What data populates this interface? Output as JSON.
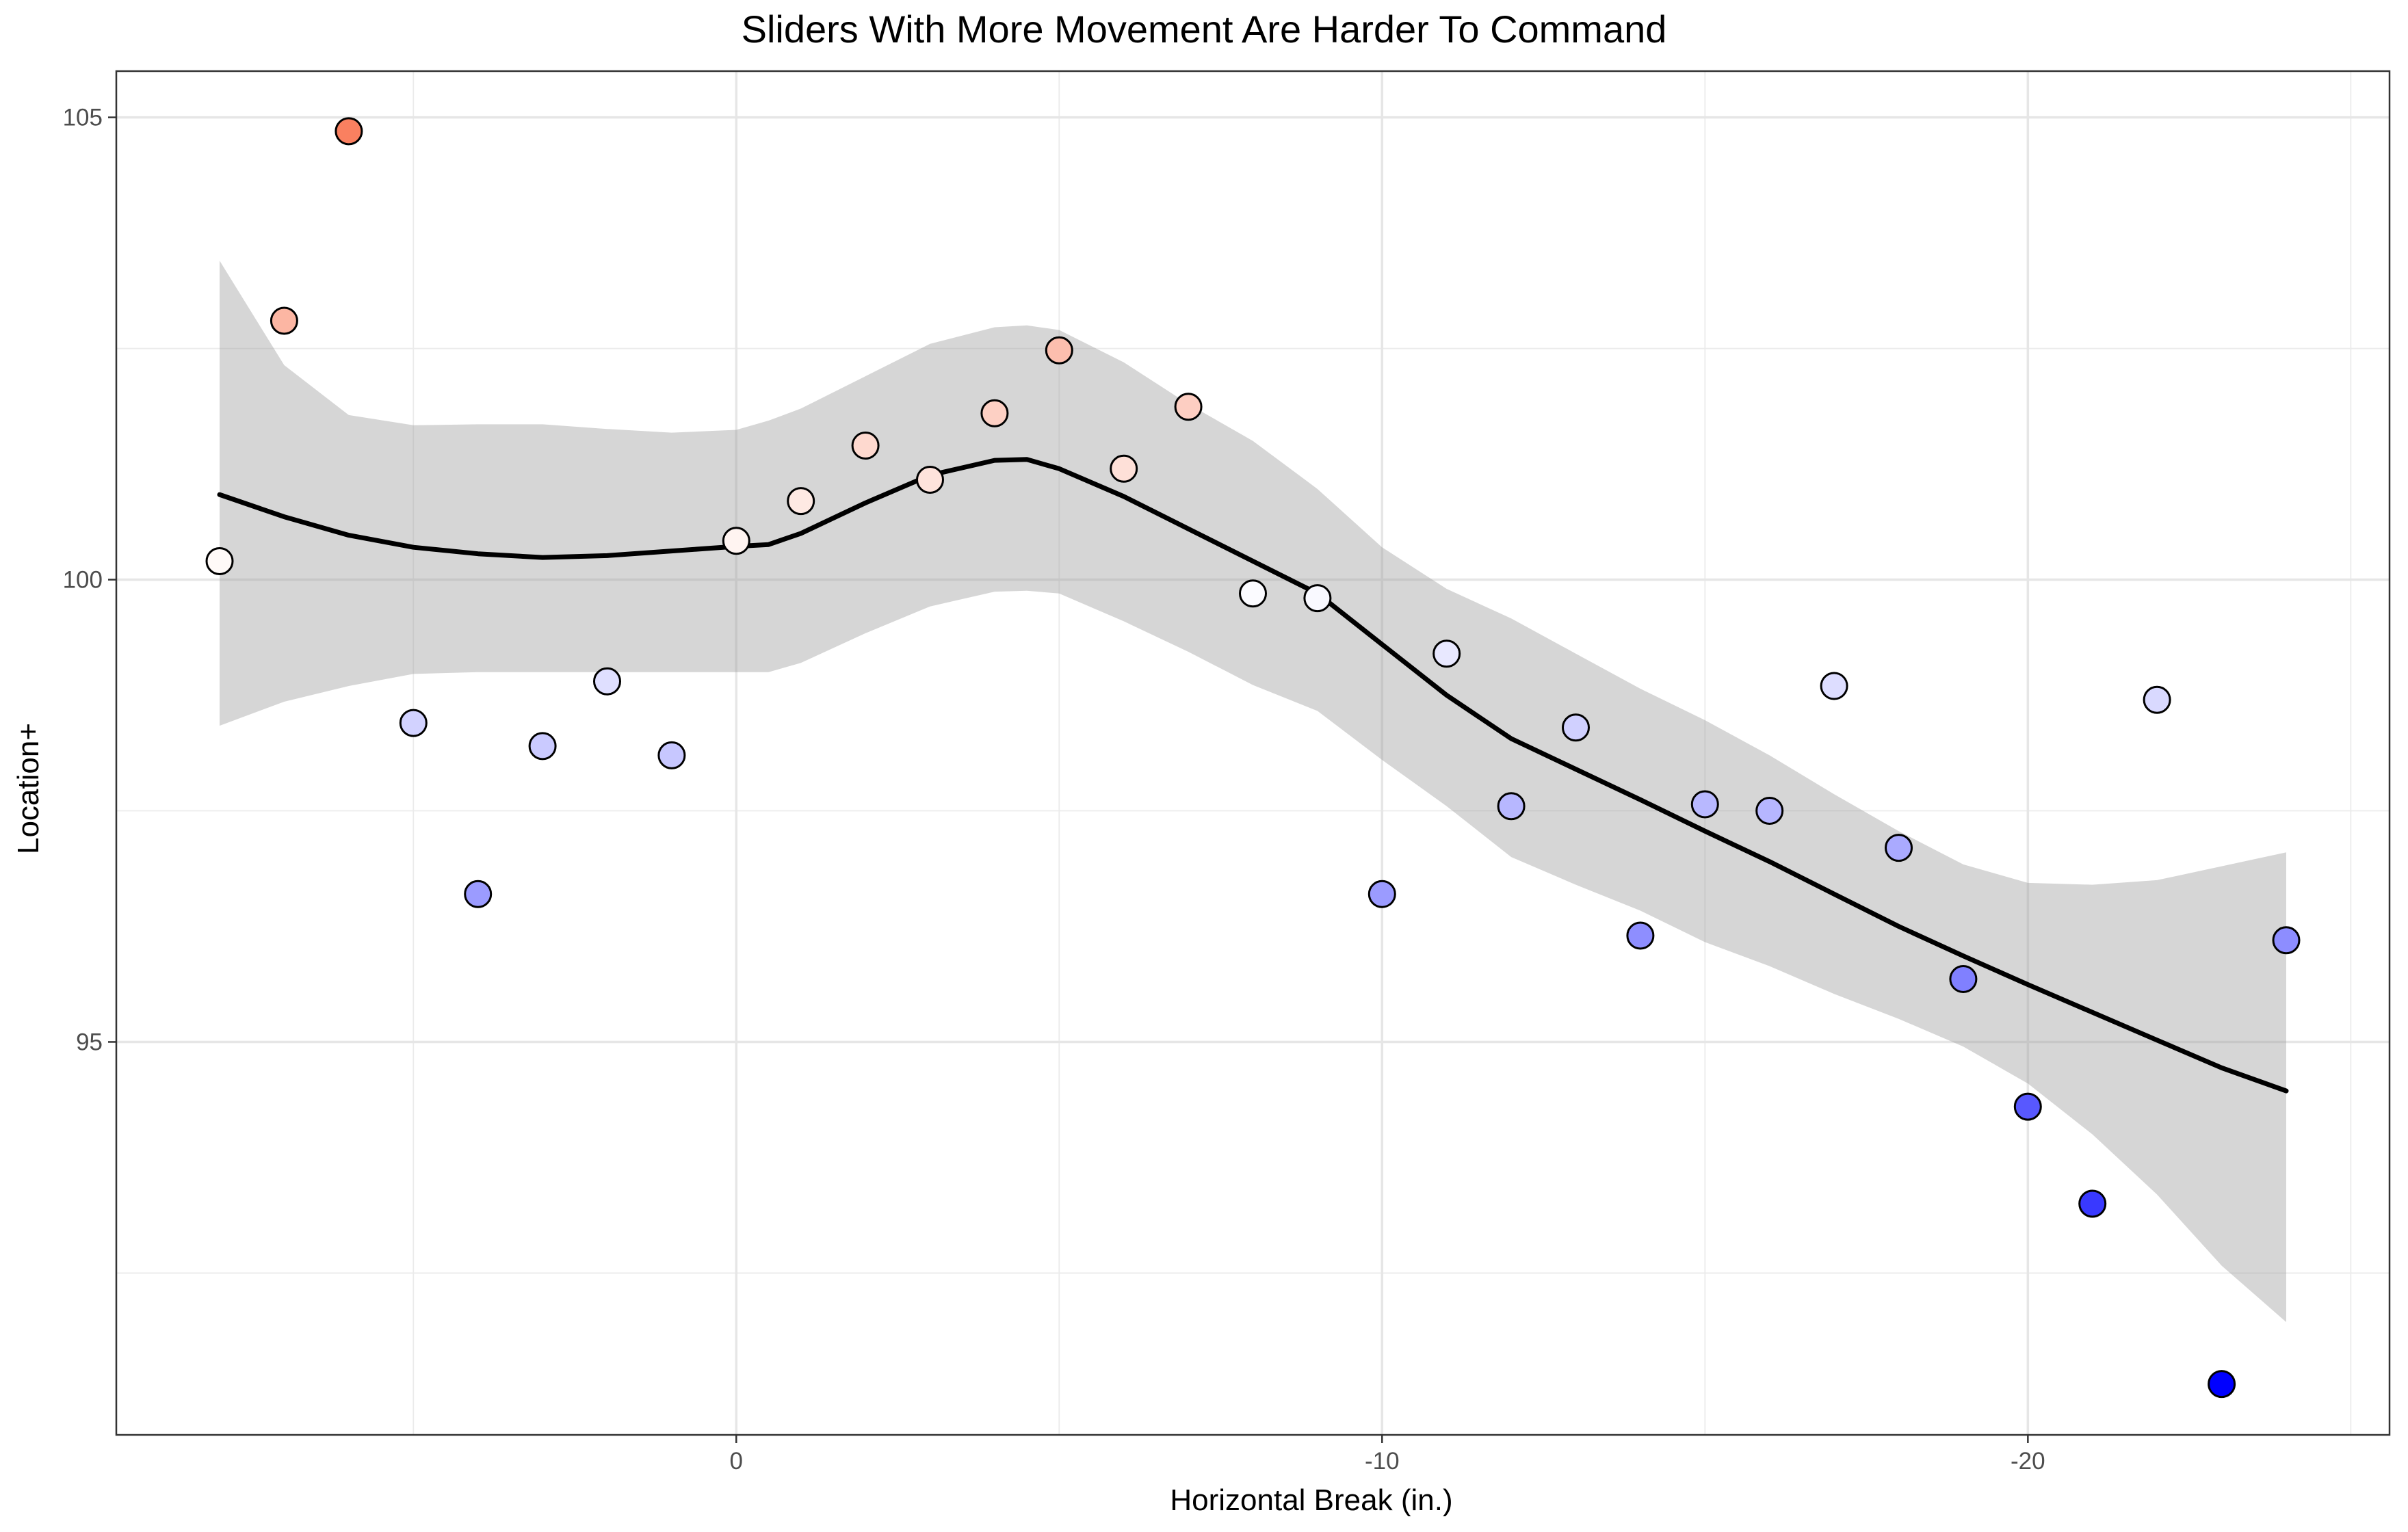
{
  "chart_data": {
    "type": "scatter",
    "title": "Sliders With More Movement Are Harder To Command",
    "xlabel": "Horizontal Break (in.)",
    "ylabel": "Location+",
    "x_reversed": true,
    "xlim": [
      9.6,
      -25.6
    ],
    "ylim": [
      90.75,
      105.5
    ],
    "x_ticks": [
      0,
      -10,
      -20
    ],
    "x_tick_labels": [
      "0",
      "-10",
      "-20"
    ],
    "x_minor_ticks": [
      5,
      -5,
      -15,
      -25
    ],
    "y_ticks": [
      95,
      100,
      105
    ],
    "y_tick_labels": [
      "95",
      "100",
      "105"
    ],
    "y_minor_ticks": [
      92.5,
      97.5,
      102.5
    ],
    "grid": true,
    "color_scale": {
      "low": "#0000ff",
      "mid": "#ffffff",
      "high": "#fa8060",
      "midpoint": 100
    },
    "points": [
      {
        "x": 8,
        "y": 100.2
      },
      {
        "x": 7,
        "y": 102.8
      },
      {
        "x": 6,
        "y": 104.85
      },
      {
        "x": 5,
        "y": 98.45
      },
      {
        "x": 4,
        "y": 96.6
      },
      {
        "x": 3,
        "y": 98.2
      },
      {
        "x": 2,
        "y": 98.9
      },
      {
        "x": 1,
        "y": 98.1
      },
      {
        "x": 0,
        "y": 100.42
      },
      {
        "x": -1,
        "y": 100.85
      },
      {
        "x": -2,
        "y": 101.45
      },
      {
        "x": -3,
        "y": 101.08
      },
      {
        "x": -4,
        "y": 101.8
      },
      {
        "x": -5,
        "y": 102.48
      },
      {
        "x": -6,
        "y": 101.2
      },
      {
        "x": -7,
        "y": 101.87
      },
      {
        "x": -8,
        "y": 99.85
      },
      {
        "x": -9,
        "y": 99.8
      },
      {
        "x": -10,
        "y": 96.6
      },
      {
        "x": -11,
        "y": 99.2
      },
      {
        "x": -12,
        "y": 97.55
      },
      {
        "x": -13,
        "y": 98.4
      },
      {
        "x": -14,
        "y": 96.15
      },
      {
        "x": -15,
        "y": 97.57
      },
      {
        "x": -16,
        "y": 97.5
      },
      {
        "x": -17,
        "y": 98.85
      },
      {
        "x": -18,
        "y": 97.1
      },
      {
        "x": -19,
        "y": 95.68
      },
      {
        "x": -20,
        "y": 94.3
      },
      {
        "x": -21,
        "y": 93.25
      },
      {
        "x": -22,
        "y": 98.7
      },
      {
        "x": -23,
        "y": 91.3
      },
      {
        "x": -24,
        "y": 96.1
      }
    ],
    "smooth": {
      "x": [
        8,
        7,
        6,
        5,
        4,
        3,
        2,
        1,
        0,
        -0.5,
        -1,
        -2,
        -3,
        -4,
        -4.5,
        -5,
        -6,
        -7,
        -8,
        -9,
        -10,
        -11,
        -12,
        -13,
        -14,
        -15,
        -16,
        -17,
        -18,
        -19,
        -20,
        -21,
        -22,
        -23,
        -24
      ],
      "y": [
        100.92,
        100.68,
        100.48,
        100.35,
        100.28,
        100.24,
        100.26,
        100.31,
        100.36,
        100.38,
        100.5,
        100.83,
        101.13,
        101.29,
        101.3,
        101.2,
        100.9,
        100.55,
        100.2,
        99.85,
        99.3,
        98.75,
        98.28,
        97.95,
        97.62,
        97.28,
        96.95,
        96.6,
        96.25,
        95.93,
        95.62,
        95.32,
        95.02,
        94.72,
        94.47
      ],
      "upper": [
        103.45,
        102.32,
        101.78,
        101.67,
        101.68,
        101.68,
        101.63,
        101.59,
        101.62,
        101.72,
        101.85,
        102.2,
        102.55,
        102.73,
        102.75,
        102.7,
        102.35,
        101.9,
        101.5,
        100.98,
        100.35,
        99.9,
        99.58,
        99.2,
        98.82,
        98.48,
        98.1,
        97.68,
        97.28,
        96.92,
        96.72,
        96.7,
        96.75,
        96.9,
        97.05
      ],
      "lower": [
        98.42,
        98.68,
        98.85,
        98.98,
        99.0,
        99.0,
        99.0,
        99.0,
        99.0,
        99.0,
        99.1,
        99.42,
        99.71,
        99.87,
        99.88,
        99.85,
        99.55,
        99.22,
        98.86,
        98.58,
        98.05,
        97.55,
        97.0,
        96.7,
        96.42,
        96.08,
        95.82,
        95.52,
        95.25,
        94.95,
        94.55,
        94.0,
        93.35,
        92.58,
        91.97
      ]
    }
  }
}
